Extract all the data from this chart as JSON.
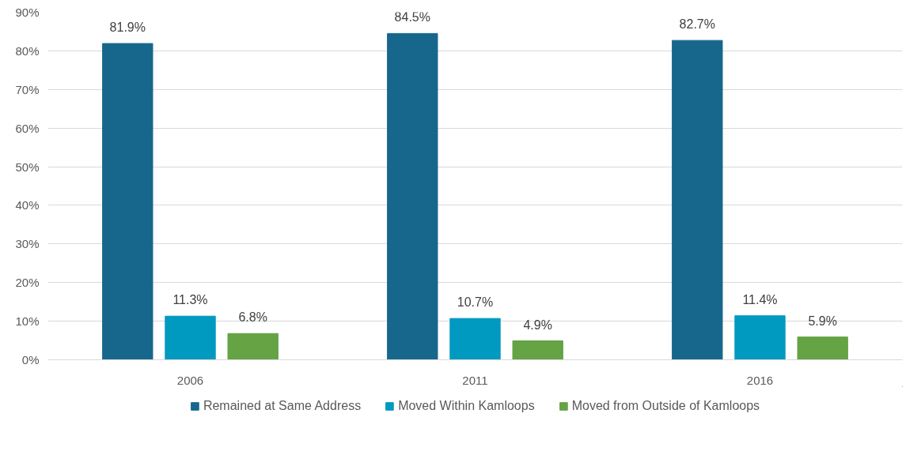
{
  "chart_data": {
    "type": "bar",
    "categories": [
      "2006",
      "2011",
      "2016"
    ],
    "series": [
      {
        "name": "Remained at Same Address",
        "color": "#17678d",
        "values": [
          81.9,
          84.5,
          82.7
        ],
        "value_labels": [
          "81.9%",
          "84.5%",
          "82.7%"
        ]
      },
      {
        "name": "Moved Within Kamloops",
        "color": "#0099c0",
        "values": [
          11.3,
          10.7,
          11.4
        ],
        "value_labels": [
          "11.3%",
          "10.7%",
          "11.4%"
        ]
      },
      {
        "name": "Moved from Outside of Kamloops",
        "color": "#65a345",
        "values": [
          6.8,
          4.9,
          5.9
        ],
        "value_labels": [
          "6.8%",
          "4.9%",
          "5.9%"
        ]
      }
    ],
    "ylim": [
      0,
      90
    ],
    "yticks": [
      {
        "value": 0,
        "label": "0%"
      },
      {
        "value": 10,
        "label": "10%"
      },
      {
        "value": 20,
        "label": "20%"
      },
      {
        "value": 30,
        "label": "30%"
      },
      {
        "value": 40,
        "label": "40%"
      },
      {
        "value": 50,
        "label": "50%"
      },
      {
        "value": 60,
        "label": "60%"
      },
      {
        "value": 70,
        "label": "70%"
      },
      {
        "value": 80,
        "label": "80%"
      },
      {
        "value": 90,
        "label": "90%"
      }
    ],
    "grid": "y",
    "legend": "bottom"
  }
}
